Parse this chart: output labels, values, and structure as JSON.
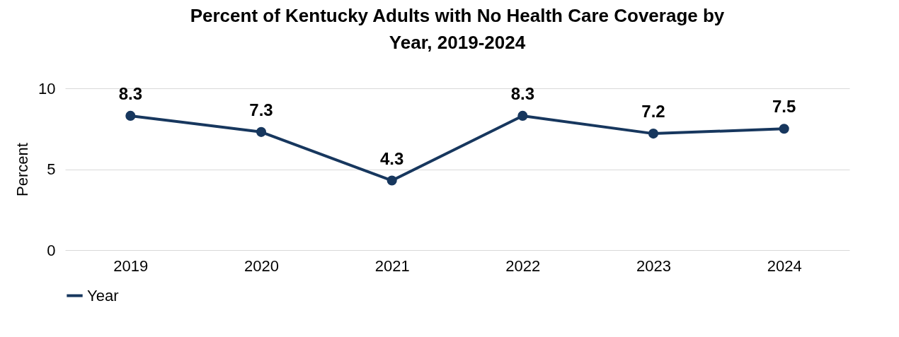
{
  "chart_data": {
    "type": "line",
    "title": "Percent of Kentucky Adults with No Health Care Coverage by Year, 2019-2024",
    "ylabel": "Percent",
    "categories": [
      "2019",
      "2020",
      "2021",
      "2022",
      "2023",
      "2024"
    ],
    "series": [
      {
        "name": "Year",
        "color": "#17375e",
        "values": [
          8.3,
          7.3,
          4.3,
          8.3,
          7.2,
          7.5
        ]
      }
    ],
    "ylim": [
      0,
      10
    ],
    "yticks": [
      0,
      5,
      10
    ],
    "grid": "y",
    "legend": "bottom",
    "marker": "circle",
    "line_style": "solid",
    "data_labels": true
  }
}
